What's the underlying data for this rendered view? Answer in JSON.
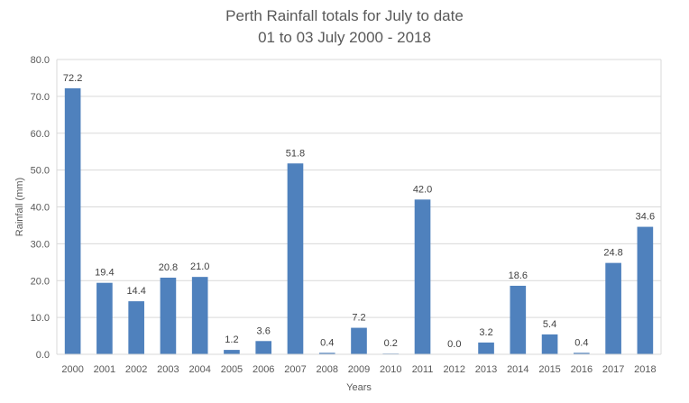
{
  "chart_data": {
    "type": "bar",
    "title": "Perth Rainfall totals for July to date",
    "subtitle": "01 to 03 July 2000 - 2018",
    "xlabel": "Years",
    "ylabel": "Rainfall (mm)",
    "ylim": [
      0,
      80
    ],
    "yticks": [
      "0.0",
      "10.0",
      "20.0",
      "30.0",
      "40.0",
      "50.0",
      "60.0",
      "70.0",
      "80.0"
    ],
    "grid": true,
    "legend": "none",
    "bar_color": "#4f81bd",
    "categories": [
      "2000",
      "2001",
      "2002",
      "2003",
      "2004",
      "2005",
      "2006",
      "2007",
      "2008",
      "2009",
      "2010",
      "2011",
      "2012",
      "2013",
      "2014",
      "2015",
      "2016",
      "2017",
      "2018"
    ],
    "values": [
      72.2,
      19.4,
      14.4,
      20.8,
      21.0,
      1.2,
      3.6,
      51.8,
      0.4,
      7.2,
      0.2,
      42.0,
      0.0,
      3.2,
      18.6,
      5.4,
      0.4,
      24.8,
      34.6
    ],
    "data_labels": [
      "72.2",
      "19.4",
      "14.4",
      "20.8",
      "21.0",
      "1.2",
      "3.6",
      "51.8",
      "0.4",
      "7.2",
      "0.2",
      "42.0",
      "0.0",
      "3.2",
      "18.6",
      "5.4",
      "0.4",
      "24.8",
      "34.6"
    ]
  }
}
